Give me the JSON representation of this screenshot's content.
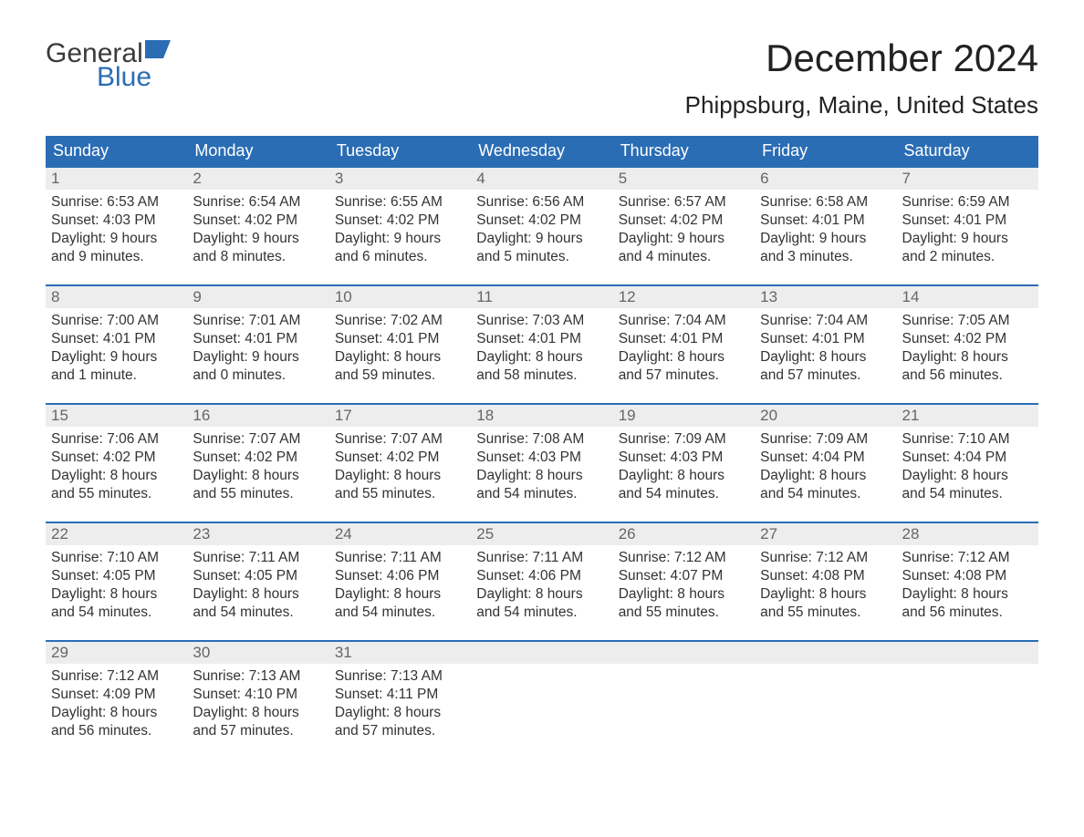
{
  "brand": {
    "word1": "General",
    "word2": "Blue",
    "accent_color": "#2a6db5"
  },
  "title": "December 2024",
  "location": "Phippsburg, Maine, United States",
  "colors": {
    "header_bg": "#2a6db5",
    "header_text": "#ffffff",
    "daynum_bg": "#ededed",
    "daynum_text": "#666666",
    "body_text": "#333333",
    "week_border": "#2a6db5",
    "page_bg": "#ffffff"
  },
  "typography": {
    "month_title_fontsize": 42,
    "location_fontsize": 26,
    "header_fontsize": 18,
    "body_fontsize": 15.5
  },
  "day_headers": [
    "Sunday",
    "Monday",
    "Tuesday",
    "Wednesday",
    "Thursday",
    "Friday",
    "Saturday"
  ],
  "weeks": [
    [
      {
        "n": "1",
        "sunrise": "Sunrise: 6:53 AM",
        "sunset": "Sunset: 4:03 PM",
        "d1": "Daylight: 9 hours",
        "d2": "and 9 minutes."
      },
      {
        "n": "2",
        "sunrise": "Sunrise: 6:54 AM",
        "sunset": "Sunset: 4:02 PM",
        "d1": "Daylight: 9 hours",
        "d2": "and 8 minutes."
      },
      {
        "n": "3",
        "sunrise": "Sunrise: 6:55 AM",
        "sunset": "Sunset: 4:02 PM",
        "d1": "Daylight: 9 hours",
        "d2": "and 6 minutes."
      },
      {
        "n": "4",
        "sunrise": "Sunrise: 6:56 AM",
        "sunset": "Sunset: 4:02 PM",
        "d1": "Daylight: 9 hours",
        "d2": "and 5 minutes."
      },
      {
        "n": "5",
        "sunrise": "Sunrise: 6:57 AM",
        "sunset": "Sunset: 4:02 PM",
        "d1": "Daylight: 9 hours",
        "d2": "and 4 minutes."
      },
      {
        "n": "6",
        "sunrise": "Sunrise: 6:58 AM",
        "sunset": "Sunset: 4:01 PM",
        "d1": "Daylight: 9 hours",
        "d2": "and 3 minutes."
      },
      {
        "n": "7",
        "sunrise": "Sunrise: 6:59 AM",
        "sunset": "Sunset: 4:01 PM",
        "d1": "Daylight: 9 hours",
        "d2": "and 2 minutes."
      }
    ],
    [
      {
        "n": "8",
        "sunrise": "Sunrise: 7:00 AM",
        "sunset": "Sunset: 4:01 PM",
        "d1": "Daylight: 9 hours",
        "d2": "and 1 minute."
      },
      {
        "n": "9",
        "sunrise": "Sunrise: 7:01 AM",
        "sunset": "Sunset: 4:01 PM",
        "d1": "Daylight: 9 hours",
        "d2": "and 0 minutes."
      },
      {
        "n": "10",
        "sunrise": "Sunrise: 7:02 AM",
        "sunset": "Sunset: 4:01 PM",
        "d1": "Daylight: 8 hours",
        "d2": "and 59 minutes."
      },
      {
        "n": "11",
        "sunrise": "Sunrise: 7:03 AM",
        "sunset": "Sunset: 4:01 PM",
        "d1": "Daylight: 8 hours",
        "d2": "and 58 minutes."
      },
      {
        "n": "12",
        "sunrise": "Sunrise: 7:04 AM",
        "sunset": "Sunset: 4:01 PM",
        "d1": "Daylight: 8 hours",
        "d2": "and 57 minutes."
      },
      {
        "n": "13",
        "sunrise": "Sunrise: 7:04 AM",
        "sunset": "Sunset: 4:01 PM",
        "d1": "Daylight: 8 hours",
        "d2": "and 57 minutes."
      },
      {
        "n": "14",
        "sunrise": "Sunrise: 7:05 AM",
        "sunset": "Sunset: 4:02 PM",
        "d1": "Daylight: 8 hours",
        "d2": "and 56 minutes."
      }
    ],
    [
      {
        "n": "15",
        "sunrise": "Sunrise: 7:06 AM",
        "sunset": "Sunset: 4:02 PM",
        "d1": "Daylight: 8 hours",
        "d2": "and 55 minutes."
      },
      {
        "n": "16",
        "sunrise": "Sunrise: 7:07 AM",
        "sunset": "Sunset: 4:02 PM",
        "d1": "Daylight: 8 hours",
        "d2": "and 55 minutes."
      },
      {
        "n": "17",
        "sunrise": "Sunrise: 7:07 AM",
        "sunset": "Sunset: 4:02 PM",
        "d1": "Daylight: 8 hours",
        "d2": "and 55 minutes."
      },
      {
        "n": "18",
        "sunrise": "Sunrise: 7:08 AM",
        "sunset": "Sunset: 4:03 PM",
        "d1": "Daylight: 8 hours",
        "d2": "and 54 minutes."
      },
      {
        "n": "19",
        "sunrise": "Sunrise: 7:09 AM",
        "sunset": "Sunset: 4:03 PM",
        "d1": "Daylight: 8 hours",
        "d2": "and 54 minutes."
      },
      {
        "n": "20",
        "sunrise": "Sunrise: 7:09 AM",
        "sunset": "Sunset: 4:04 PM",
        "d1": "Daylight: 8 hours",
        "d2": "and 54 minutes."
      },
      {
        "n": "21",
        "sunrise": "Sunrise: 7:10 AM",
        "sunset": "Sunset: 4:04 PM",
        "d1": "Daylight: 8 hours",
        "d2": "and 54 minutes."
      }
    ],
    [
      {
        "n": "22",
        "sunrise": "Sunrise: 7:10 AM",
        "sunset": "Sunset: 4:05 PM",
        "d1": "Daylight: 8 hours",
        "d2": "and 54 minutes."
      },
      {
        "n": "23",
        "sunrise": "Sunrise: 7:11 AM",
        "sunset": "Sunset: 4:05 PM",
        "d1": "Daylight: 8 hours",
        "d2": "and 54 minutes."
      },
      {
        "n": "24",
        "sunrise": "Sunrise: 7:11 AM",
        "sunset": "Sunset: 4:06 PM",
        "d1": "Daylight: 8 hours",
        "d2": "and 54 minutes."
      },
      {
        "n": "25",
        "sunrise": "Sunrise: 7:11 AM",
        "sunset": "Sunset: 4:06 PM",
        "d1": "Daylight: 8 hours",
        "d2": "and 54 minutes."
      },
      {
        "n": "26",
        "sunrise": "Sunrise: 7:12 AM",
        "sunset": "Sunset: 4:07 PM",
        "d1": "Daylight: 8 hours",
        "d2": "and 55 minutes."
      },
      {
        "n": "27",
        "sunrise": "Sunrise: 7:12 AM",
        "sunset": "Sunset: 4:08 PM",
        "d1": "Daylight: 8 hours",
        "d2": "and 55 minutes."
      },
      {
        "n": "28",
        "sunrise": "Sunrise: 7:12 AM",
        "sunset": "Sunset: 4:08 PM",
        "d1": "Daylight: 8 hours",
        "d2": "and 56 minutes."
      }
    ],
    [
      {
        "n": "29",
        "sunrise": "Sunrise: 7:12 AM",
        "sunset": "Sunset: 4:09 PM",
        "d1": "Daylight: 8 hours",
        "d2": "and 56 minutes."
      },
      {
        "n": "30",
        "sunrise": "Sunrise: 7:13 AM",
        "sunset": "Sunset: 4:10 PM",
        "d1": "Daylight: 8 hours",
        "d2": "and 57 minutes."
      },
      {
        "n": "31",
        "sunrise": "Sunrise: 7:13 AM",
        "sunset": "Sunset: 4:11 PM",
        "d1": "Daylight: 8 hours",
        "d2": "and 57 minutes."
      },
      {
        "n": "",
        "sunrise": "",
        "sunset": "",
        "d1": "",
        "d2": ""
      },
      {
        "n": "",
        "sunrise": "",
        "sunset": "",
        "d1": "",
        "d2": ""
      },
      {
        "n": "",
        "sunrise": "",
        "sunset": "",
        "d1": "",
        "d2": ""
      },
      {
        "n": "",
        "sunrise": "",
        "sunset": "",
        "d1": "",
        "d2": ""
      }
    ]
  ]
}
